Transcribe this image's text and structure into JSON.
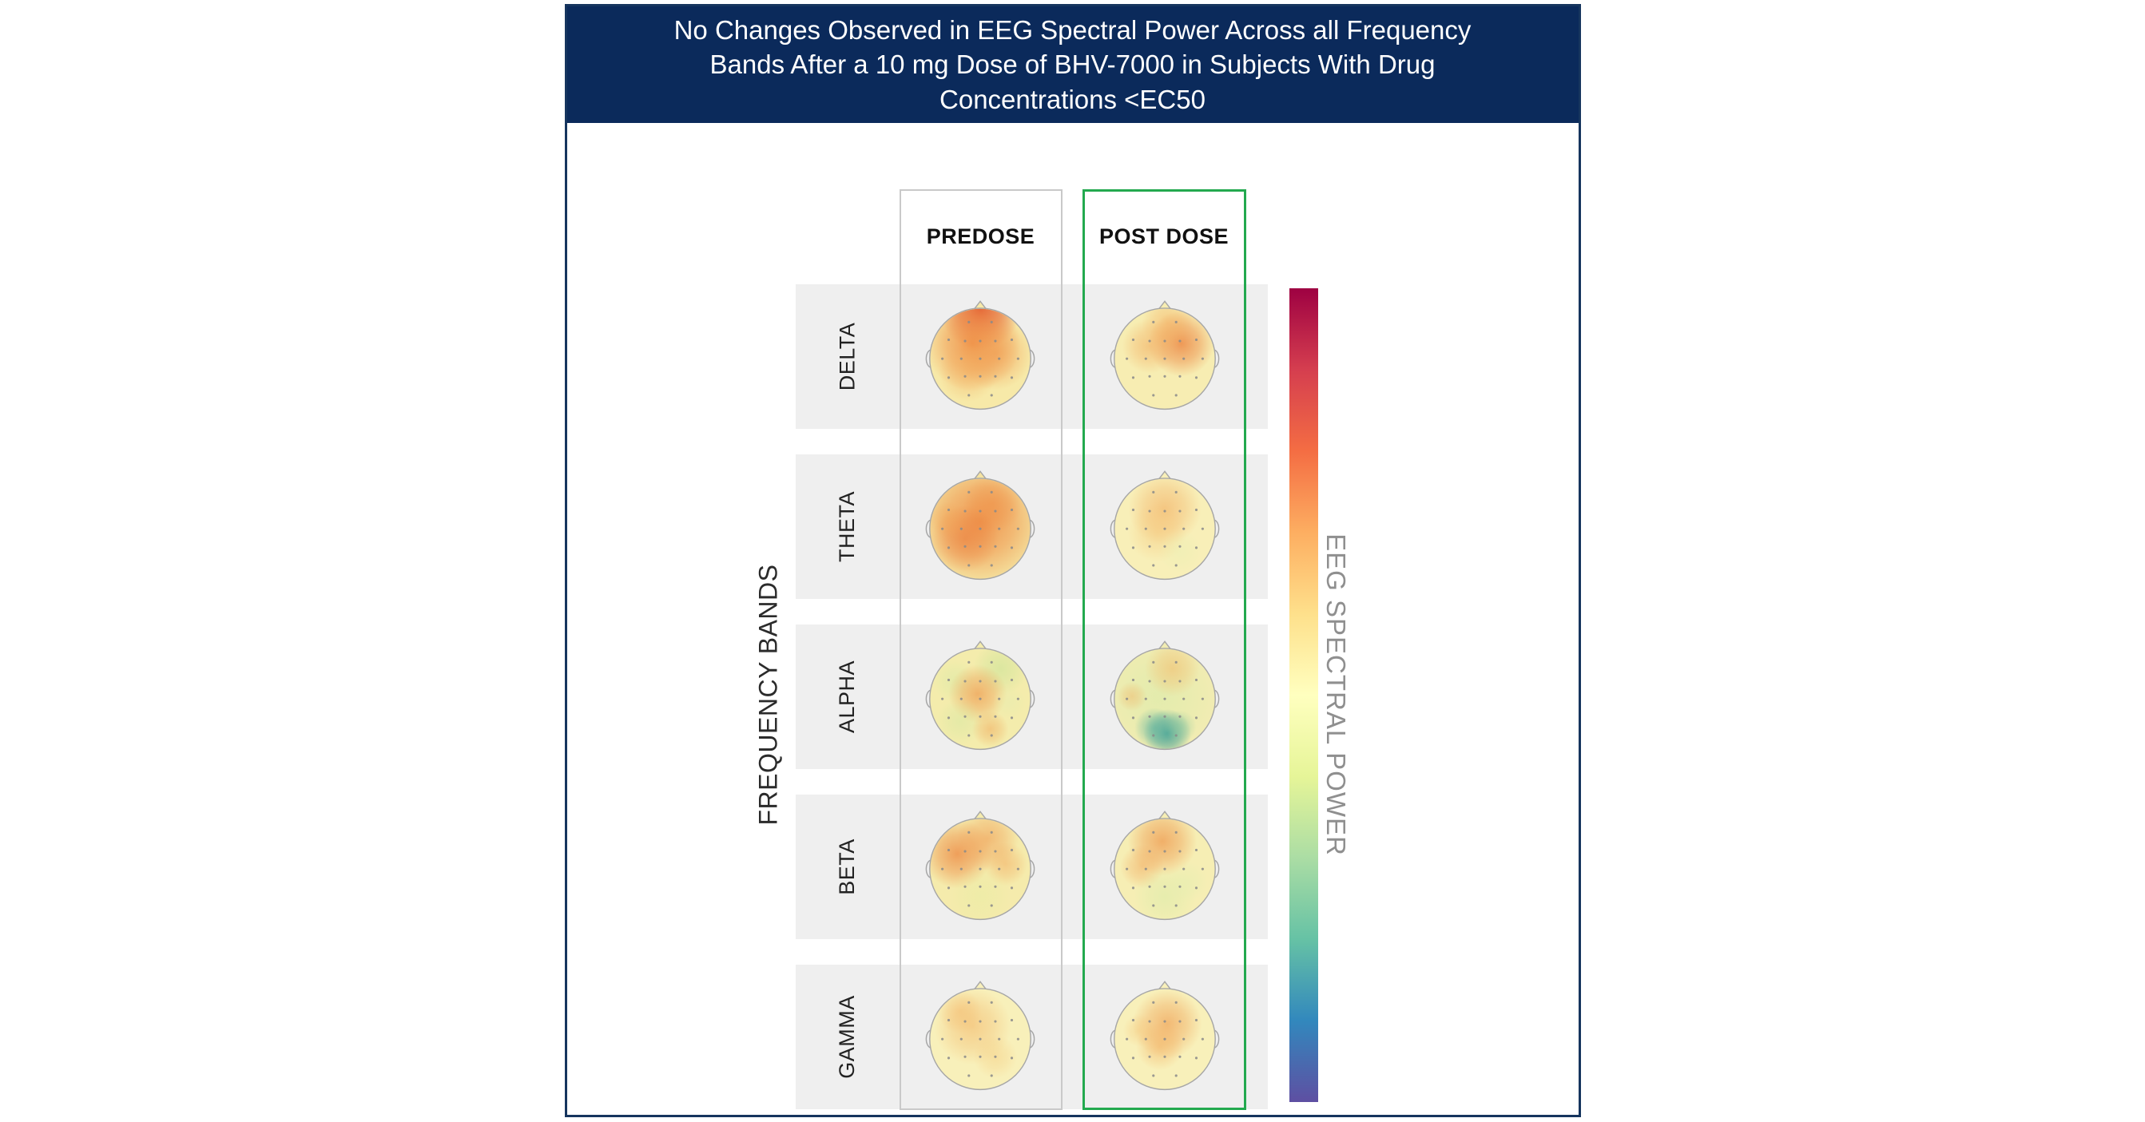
{
  "title": "No Changes Observed in EEG Spectral Power Across all Frequency Bands After a 10 mg Dose of BHV-7000 in Subjects With Drug Concentrations <EC50",
  "labels": {
    "y_axis": "FREQUENCY BANDS",
    "colorbar": "EEG SPECTRAL POWER"
  },
  "columns": [
    {
      "label": "PREDOSE"
    },
    {
      "label": "POST DOSE"
    }
  ],
  "colors": {
    "title_bar_bg": "#0b2a5b",
    "title_text": "#ffffff",
    "figure_border": "#16355e",
    "row_band_bg": "#efefef",
    "predose_box_border": "#c9c9c9",
    "postdose_box_border": "#23a94f",
    "colorbar_label_text": "#8f8f8f",
    "electrode_dot": "#8a8a8a",
    "head_outline": "#a6a6a6"
  },
  "chart_data": {
    "type": "heatmap",
    "subtype": "eeg-topomap-grid",
    "title": "No Changes Observed in EEG Spectral Power Across all Frequency Bands After a 10 mg Dose of BHV-7000 in Subjects With Drug Concentrations <EC50",
    "rows": [
      "DELTA",
      "THETA",
      "ALPHA",
      "BETA",
      "GAMMA"
    ],
    "columns": [
      "PREDOSE",
      "POST DOSE"
    ],
    "highlighted_column": "POST DOSE",
    "ylabel": "FREQUENCY BANDS",
    "colorbar": {
      "label": "EEG SPECTRAL POWER",
      "colors_top_to_bottom": [
        "#9e0142",
        "#d53e4f",
        "#f46d43",
        "#fdae61",
        "#fee08b",
        "#ffffbf",
        "#e6f598",
        "#abdda4",
        "#66c2a5",
        "#3288bd",
        "#5e4fa2"
      ]
    },
    "maps": [
      {
        "band": "DELTA",
        "cells": [
          {
            "condition": "PREDOSE",
            "base": "#f7e9a8",
            "blobs": [
              {
                "x": 50,
                "y": 13,
                "r": 22,
                "color": "#e0502a",
                "alpha": 0.9
              },
              {
                "x": 44,
                "y": 40,
                "r": 26,
                "color": "#ef8a40",
                "alpha": 0.85
              },
              {
                "x": 62,
                "y": 48,
                "r": 20,
                "color": "#f0984c",
                "alpha": 0.6
              },
              {
                "x": 40,
                "y": 63,
                "r": 16,
                "color": "#f2a858",
                "alpha": 0.45
              }
            ]
          },
          {
            "condition": "POST DOSE",
            "base": "#f7edb2",
            "blobs": [
              {
                "x": 63,
                "y": 40,
                "r": 18,
                "color": "#ec8440",
                "alpha": 0.8
              },
              {
                "x": 38,
                "y": 42,
                "r": 15,
                "color": "#f2a85a",
                "alpha": 0.55
              },
              {
                "x": 52,
                "y": 24,
                "r": 14,
                "color": "#f3aa58",
                "alpha": 0.5
              }
            ]
          }
        ]
      },
      {
        "band": "THETA",
        "cells": [
          {
            "condition": "PREDOSE",
            "base": "#f5e3a0",
            "blobs": [
              {
                "x": 50,
                "y": 46,
                "r": 34,
                "color": "#ee8840",
                "alpha": 0.85
              },
              {
                "x": 38,
                "y": 60,
                "r": 18,
                "color": "#ea7b3a",
                "alpha": 0.55
              },
              {
                "x": 60,
                "y": 32,
                "r": 16,
                "color": "#ef8f46",
                "alpha": 0.55
              },
              {
                "x": 25,
                "y": 45,
                "r": 10,
                "color": "#f2a455",
                "alpha": 0.4
              }
            ]
          },
          {
            "condition": "POST DOSE",
            "base": "#f8efb8",
            "blobs": [
              {
                "x": 50,
                "y": 36,
                "r": 20,
                "color": "#f2a656",
                "alpha": 0.55
              },
              {
                "x": 44,
                "y": 55,
                "r": 16,
                "color": "#f5c374",
                "alpha": 0.45
              },
              {
                "x": 62,
                "y": 70,
                "r": 12,
                "color": "#e9efb2",
                "alpha": 0.45
              }
            ]
          }
        ]
      },
      {
        "band": "ALPHA",
        "cells": [
          {
            "condition": "PREDOSE",
            "base": "#f4ecac",
            "blobs": [
              {
                "x": 66,
                "y": 28,
                "r": 15,
                "color": "#d3e59c",
                "alpha": 0.75
              },
              {
                "x": 30,
                "y": 38,
                "r": 12,
                "color": "#dceaa6",
                "alpha": 0.6
              },
              {
                "x": 48,
                "y": 48,
                "r": 16,
                "color": "#ee9a4e",
                "alpha": 0.7
              },
              {
                "x": 34,
                "y": 70,
                "r": 13,
                "color": "#d8e8a2",
                "alpha": 0.55
              },
              {
                "x": 58,
                "y": 76,
                "r": 10,
                "color": "#efa455",
                "alpha": 0.5
              },
              {
                "x": 73,
                "y": 55,
                "r": 9,
                "color": "#e6edae",
                "alpha": 0.5
              }
            ]
          },
          {
            "condition": "POST DOSE",
            "base": "#f1ecb2",
            "blobs": [
              {
                "x": 45,
                "y": 50,
                "r": 30,
                "color": "#dcebaa",
                "alpha": 0.65
              },
              {
                "x": 52,
                "y": 79,
                "r": 13,
                "color": "#3f9f95",
                "alpha": 0.9
              },
              {
                "x": 42,
                "y": 75,
                "r": 11,
                "color": "#63b5a0",
                "alpha": 0.65
              },
              {
                "x": 62,
                "y": 74,
                "r": 9,
                "color": "#8fcaa0",
                "alpha": 0.5
              },
              {
                "x": 56,
                "y": 28,
                "r": 15,
                "color": "#f3b968",
                "alpha": 0.55
              },
              {
                "x": 24,
                "y": 50,
                "r": 8,
                "color": "#f0b264",
                "alpha": 0.45
              }
            ]
          }
        ]
      },
      {
        "band": "BETA",
        "cells": [
          {
            "condition": "PREDOSE",
            "base": "#f5ebac",
            "blobs": [
              {
                "x": 32,
                "y": 40,
                "r": 19,
                "color": "#ed8c46",
                "alpha": 0.8
              },
              {
                "x": 56,
                "y": 28,
                "r": 17,
                "color": "#f09a50",
                "alpha": 0.6
              },
              {
                "x": 70,
                "y": 48,
                "r": 12,
                "color": "#f2a85c",
                "alpha": 0.5
              },
              {
                "x": 50,
                "y": 74,
                "r": 17,
                "color": "#e9eca4",
                "alpha": 0.55
              }
            ]
          },
          {
            "condition": "POST DOSE",
            "base": "#f6eeb4",
            "blobs": [
              {
                "x": 48,
                "y": 30,
                "r": 19,
                "color": "#ee9448",
                "alpha": 0.7
              },
              {
                "x": 32,
                "y": 50,
                "r": 12,
                "color": "#f2a458",
                "alpha": 0.5
              },
              {
                "x": 50,
                "y": 74,
                "r": 17,
                "color": "#dcecaa",
                "alpha": 0.6
              },
              {
                "x": 68,
                "y": 62,
                "r": 11,
                "color": "#e4eeb0",
                "alpha": 0.5
              }
            ]
          }
        ]
      },
      {
        "band": "GAMMA",
        "cells": [
          {
            "condition": "PREDOSE",
            "base": "#f8f0ba",
            "blobs": [
              {
                "x": 44,
                "y": 42,
                "r": 21,
                "color": "#f2ae5c",
                "alpha": 0.5
              },
              {
                "x": 34,
                "y": 30,
                "r": 12,
                "color": "#f3b262",
                "alpha": 0.4
              },
              {
                "x": 62,
                "y": 66,
                "r": 12,
                "color": "#f5c676",
                "alpha": 0.4
              }
            ]
          },
          {
            "condition": "POST DOSE",
            "base": "#f8f0ba",
            "blobs": [
              {
                "x": 52,
                "y": 40,
                "r": 19,
                "color": "#ef9c4e",
                "alpha": 0.65
              },
              {
                "x": 46,
                "y": 58,
                "r": 13,
                "color": "#f3ae5e",
                "alpha": 0.5
              },
              {
                "x": 30,
                "y": 45,
                "r": 9,
                "color": "#f5c070",
                "alpha": 0.4
              }
            ]
          }
        ]
      }
    ]
  }
}
